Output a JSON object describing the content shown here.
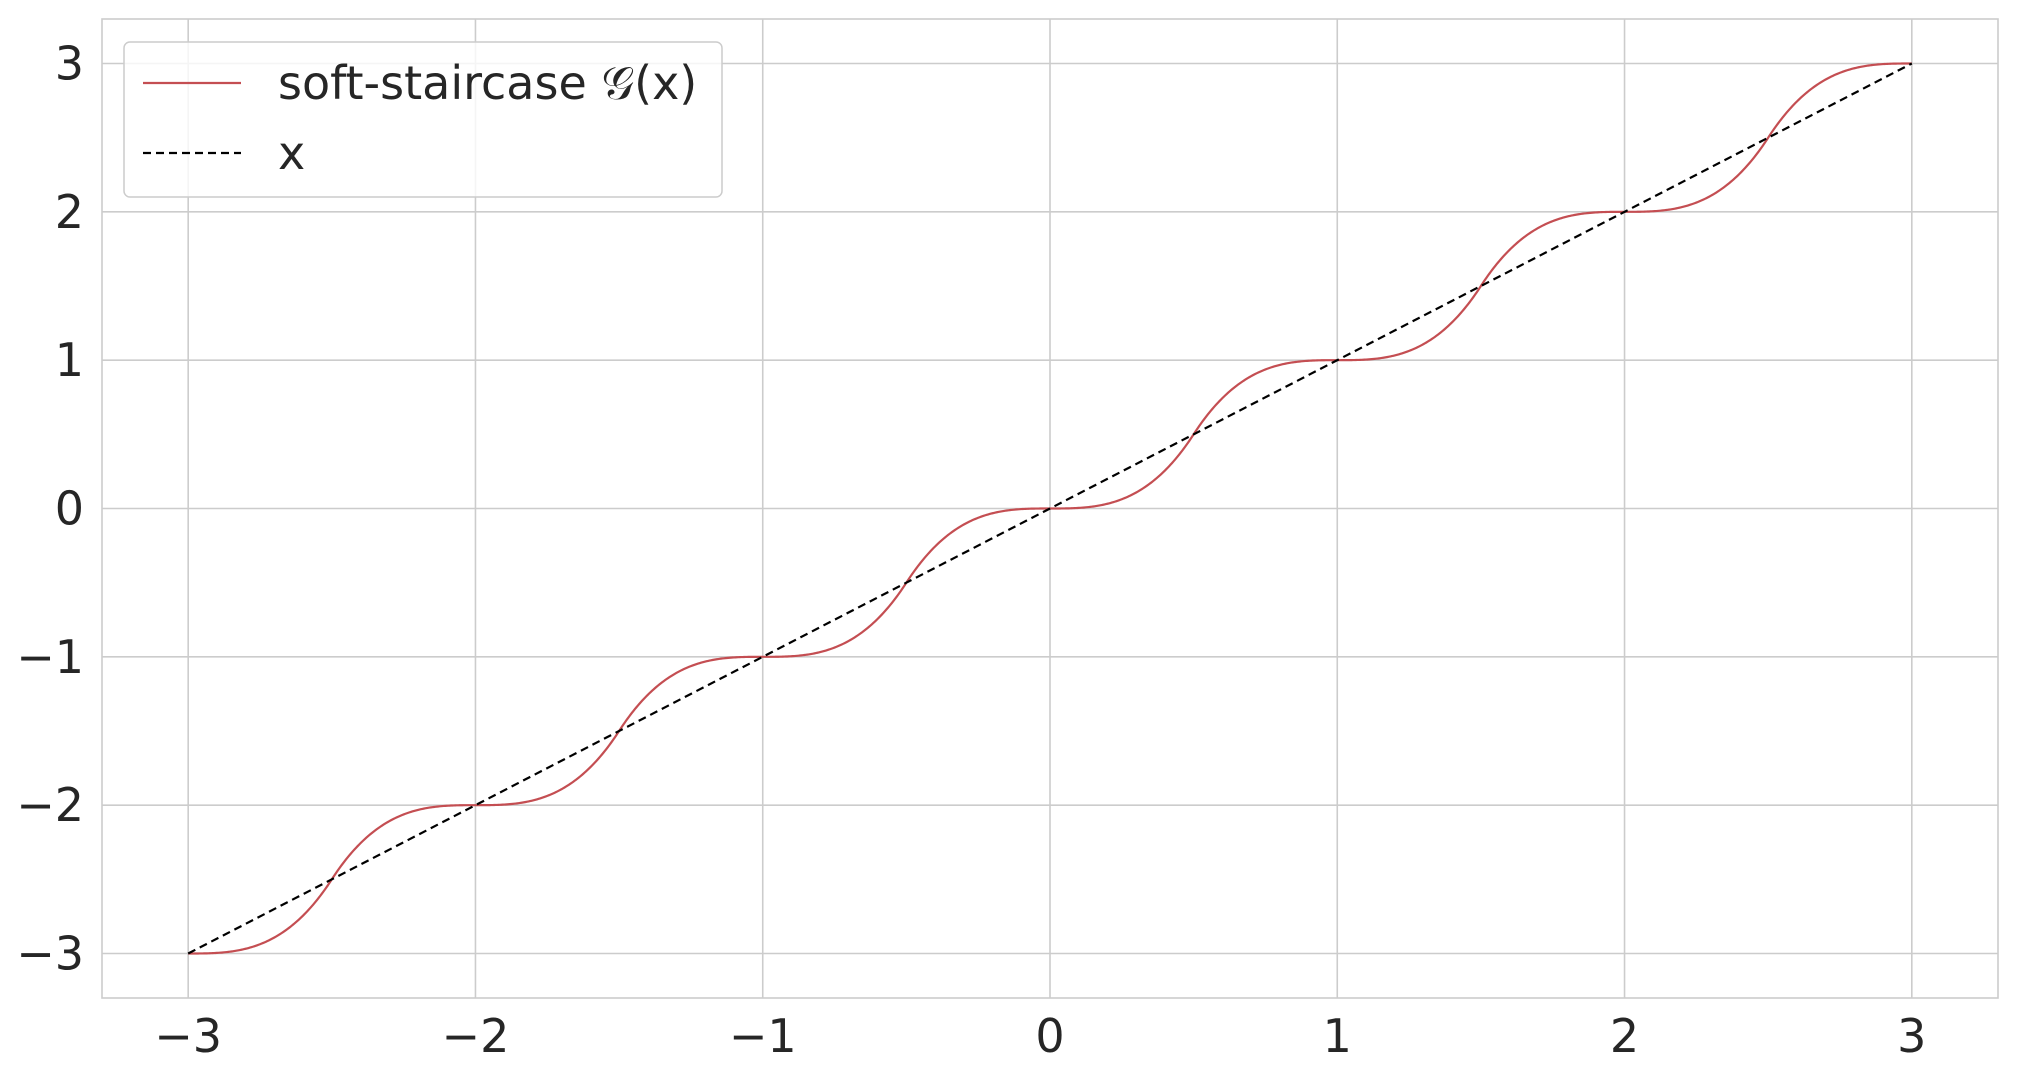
{
  "chart_data": {
    "type": "line",
    "title": "",
    "xlabel": "",
    "ylabel": "",
    "xlim": [
      -3.3,
      3.3
    ],
    "ylim": [
      -3.3,
      3.3
    ],
    "x_ticks": [
      -3,
      -2,
      -1,
      0,
      1,
      2,
      3
    ],
    "y_ticks": [
      -3,
      -2,
      -1,
      0,
      1,
      2,
      3
    ],
    "x_tick_labels": [
      "−3",
      "−2",
      "−1",
      "0",
      "1",
      "2",
      "3"
    ],
    "y_tick_labels": [
      "−3",
      "−2",
      "−1",
      "0",
      "1",
      "2",
      "3"
    ],
    "grid": true,
    "legend_position": "top-left",
    "series": [
      {
        "name": "soft-staircase 𝒢(x)",
        "color": "#c44e52",
        "style": "solid",
        "x": [
          -3,
          -2.75,
          -2.5,
          -2.25,
          -2,
          -1.75,
          -1.5,
          -1.25,
          -1,
          -0.75,
          -0.5,
          -0.25,
          0,
          0.25,
          0.5,
          0.75,
          1,
          1.25,
          1.5,
          1.75,
          2,
          2.25,
          2.5,
          2.75,
          3
        ],
        "y": [
          -3,
          -2.98,
          -2.5,
          -2.02,
          -2,
          -1.98,
          -1.5,
          -1.02,
          -1,
          -0.98,
          -0.5,
          -0.02,
          0,
          0.02,
          0.5,
          0.98,
          1,
          1.02,
          1.5,
          1.98,
          2,
          2.02,
          2.5,
          2.98,
          3
        ]
      },
      {
        "name": "x",
        "color": "#000000",
        "style": "dashed",
        "x": [
          -3,
          3
        ],
        "y": [
          -3,
          3
        ]
      }
    ]
  }
}
